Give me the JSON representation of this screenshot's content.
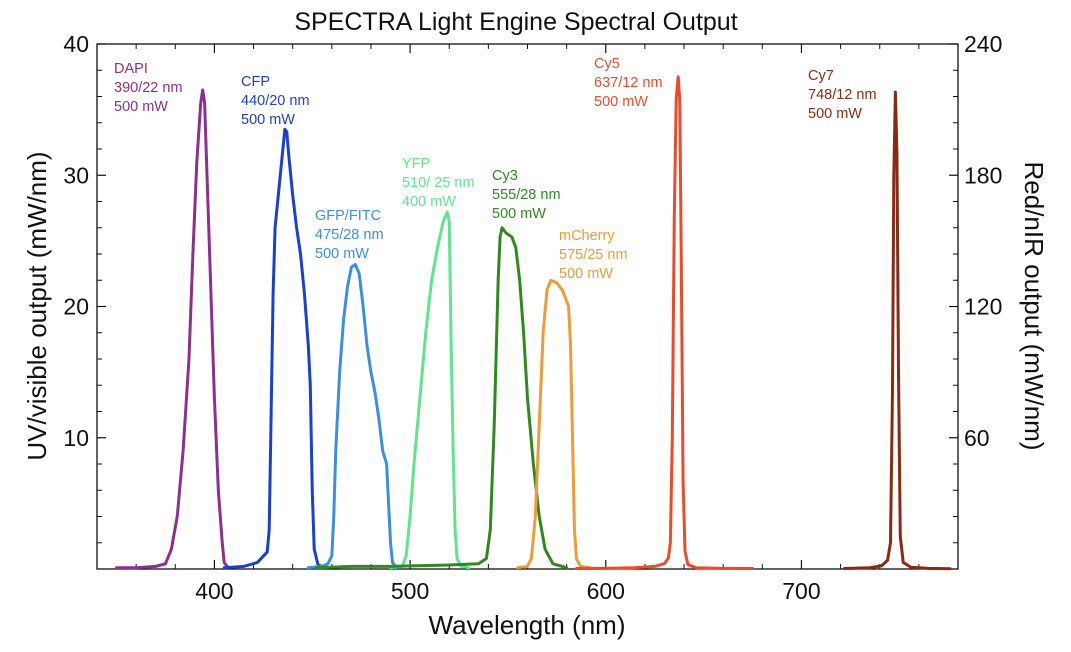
{
  "chart_data": {
    "type": "line",
    "title": "SPECTRA Light Engine Spectral Output",
    "xlabel": "Wavelength (nm)",
    "ylabel_left": "UV/visible output (mW/nm)",
    "ylabel_right": "Red/nIR output (mW/nm)",
    "xlim": [
      340,
      780
    ],
    "ylim_left": [
      0,
      40
    ],
    "ylim_right": [
      0,
      240
    ],
    "x_ticks": [
      400,
      500,
      600,
      700
    ],
    "y_left_ticks": [
      10,
      20,
      30,
      40
    ],
    "y_right_ticks": [
      60,
      120,
      180,
      240
    ],
    "grid": false,
    "legend": "none",
    "series": [
      {
        "name": "DAPI",
        "color": "#8e2f8e",
        "axis": "left",
        "annotation": [
          "DAPI",
          "390/22 nm",
          "500 mW"
        ],
        "points": [
          [
            350,
            0.1
          ],
          [
            360,
            0.1
          ],
          [
            370,
            0.2
          ],
          [
            375,
            0.4
          ],
          [
            378,
            1.5
          ],
          [
            381,
            4
          ],
          [
            384,
            9
          ],
          [
            387,
            16
          ],
          [
            389,
            24
          ],
          [
            391,
            31
          ],
          [
            393,
            35.5
          ],
          [
            394,
            36.5
          ],
          [
            395,
            35.5
          ],
          [
            396,
            31
          ],
          [
            398,
            22
          ],
          [
            400,
            13
          ],
          [
            402,
            6
          ],
          [
            404,
            2
          ],
          [
            405,
            0.5
          ],
          [
            407,
            0.1
          ]
        ]
      },
      {
        "name": "CFP",
        "color": "#1a3fd6",
        "axis": "left",
        "annotation": [
          "CFP",
          "440/20 nm",
          "500 mW"
        ],
        "points": [
          [
            405,
            0.1
          ],
          [
            415,
            0.2
          ],
          [
            422,
            0.5
          ],
          [
            427,
            1.3
          ],
          [
            428,
            3
          ],
          [
            429,
            12
          ],
          [
            430,
            21
          ],
          [
            431,
            26
          ],
          [
            433,
            29
          ],
          [
            435,
            32
          ],
          [
            436,
            33.5
          ],
          [
            437,
            33.3
          ],
          [
            438,
            31.5
          ],
          [
            440,
            28.5
          ],
          [
            442,
            26
          ],
          [
            444,
            24
          ],
          [
            446,
            21
          ],
          [
            448,
            17
          ],
          [
            449,
            14
          ],
          [
            450,
            6
          ],
          [
            451,
            1.5
          ],
          [
            453,
            0.3
          ],
          [
            457,
            0.1
          ]
        ]
      },
      {
        "name": "GFP/FITC",
        "color": "#3b8ee6",
        "axis": "left",
        "annotation": [
          "GFP/FITC",
          "475/28 nm",
          "500 mW"
        ],
        "points": [
          [
            448,
            0.1
          ],
          [
            455,
            0.2
          ],
          [
            458,
            0.4
          ],
          [
            460,
            1
          ],
          [
            461,
            4
          ],
          [
            462,
            9
          ],
          [
            464,
            15
          ],
          [
            466,
            19
          ],
          [
            468,
            21.5
          ],
          [
            470,
            23
          ],
          [
            472,
            23.2
          ],
          [
            474,
            22.5
          ],
          [
            476,
            20
          ],
          [
            478,
            17
          ],
          [
            480,
            15
          ],
          [
            482,
            13.5
          ],
          [
            484,
            11.5
          ],
          [
            486,
            9
          ],
          [
            488,
            8
          ],
          [
            489,
            5
          ],
          [
            490,
            2
          ],
          [
            491,
            0.5
          ],
          [
            493,
            0.1
          ]
        ]
      },
      {
        "name": "YFP",
        "color": "#5ee58e",
        "axis": "left",
        "annotation": [
          "YFP",
          "510/ 25 nm",
          "400 mW"
        ],
        "points": [
          [
            490,
            0.1
          ],
          [
            496,
            0.2
          ],
          [
            498,
            1
          ],
          [
            500,
            4
          ],
          [
            502,
            8
          ],
          [
            505,
            13
          ],
          [
            508,
            18
          ],
          [
            511,
            22
          ],
          [
            514,
            24.5
          ],
          [
            517,
            26.5
          ],
          [
            519,
            27.2
          ],
          [
            520,
            26.5
          ],
          [
            521,
            17
          ],
          [
            522,
            9
          ],
          [
            523,
            3
          ],
          [
            524,
            0.8
          ],
          [
            526,
            0.2
          ],
          [
            530,
            0.1
          ]
        ]
      },
      {
        "name": "Cy3",
        "color": "#2e8a1e",
        "axis": "left",
        "annotation": [
          "Cy3",
          "555/28 nm",
          "500 mW"
        ],
        "points": [
          [
            452,
            0.1
          ],
          [
            470,
            0.2
          ],
          [
            490,
            0.2
          ],
          [
            520,
            0.3
          ],
          [
            535,
            0.4
          ],
          [
            539,
            0.8
          ],
          [
            541,
            3
          ],
          [
            543,
            11
          ],
          [
            545,
            22
          ],
          [
            546,
            25.3
          ],
          [
            547,
            26
          ],
          [
            549,
            25.6
          ],
          [
            552,
            25.3
          ],
          [
            554,
            24.5
          ],
          [
            556,
            22
          ],
          [
            558,
            18
          ],
          [
            560,
            13
          ],
          [
            563,
            8
          ],
          [
            566,
            4
          ],
          [
            569,
            1.5
          ],
          [
            573,
            0.4
          ],
          [
            580,
            0.1
          ]
        ]
      },
      {
        "name": "mCherry",
        "color": "#f09a3a",
        "axis": "left",
        "annotation": [
          "mCherry",
          "575/25 nm",
          "500 mW"
        ],
        "points": [
          [
            555,
            0.1
          ],
          [
            560,
            0.2
          ],
          [
            562,
            0.8
          ],
          [
            564,
            4
          ],
          [
            566,
            11
          ],
          [
            568,
            18
          ],
          [
            570,
            21.3
          ],
          [
            572,
            22
          ],
          [
            575,
            21.8
          ],
          [
            578,
            21.2
          ],
          [
            581,
            20
          ],
          [
            582,
            17
          ],
          [
            583,
            10
          ],
          [
            584,
            3
          ],
          [
            585,
            0.8
          ],
          [
            587,
            0.2
          ],
          [
            592,
            0.1
          ]
        ]
      },
      {
        "name": "Cy5",
        "color": "#ee4a2a",
        "axis": "right",
        "annotation": [
          "Cy5",
          "637/12 nm",
          "500 mW"
        ],
        "points": [
          [
            585,
            0.2
          ],
          [
            600,
            0.3
          ],
          [
            615,
            0.6
          ],
          [
            625,
            1.2
          ],
          [
            630,
            2.5
          ],
          [
            632,
            5
          ],
          [
            633,
            12
          ],
          [
            634,
            60
          ],
          [
            635,
            160
          ],
          [
            636,
            215
          ],
          [
            637,
            225
          ],
          [
            637.8,
            215
          ],
          [
            638.5,
            150
          ],
          [
            639.5,
            40
          ],
          [
            640.5,
            8
          ],
          [
            642,
            2
          ],
          [
            646,
            0.6
          ],
          [
            660,
            0.3
          ],
          [
            675,
            0.2
          ]
        ]
      },
      {
        "name": "Cy7",
        "color": "#8b2a14",
        "axis": "right",
        "annotation": [
          "Cy7",
          "748/12 nm",
          "500 mW"
        ],
        "points": [
          [
            722,
            0.2
          ],
          [
            735,
            0.6
          ],
          [
            741,
            1.5
          ],
          [
            744,
            4
          ],
          [
            745.5,
            12
          ],
          [
            746.5,
            80
          ],
          [
            747.2,
            180
          ],
          [
            748,
            218
          ],
          [
            748.8,
            190
          ],
          [
            749.6,
            90
          ],
          [
            750.5,
            15
          ],
          [
            752,
            3
          ],
          [
            756,
            0.8
          ],
          [
            765,
            0.3
          ],
          [
            776,
            0.1
          ]
        ]
      }
    ]
  }
}
